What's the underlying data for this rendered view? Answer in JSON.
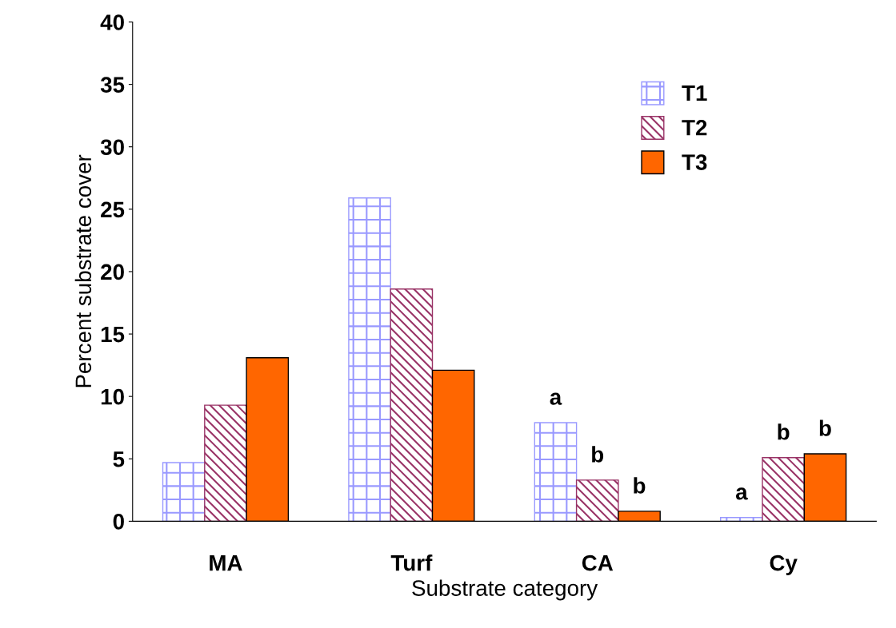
{
  "chart_data": {
    "type": "bar",
    "xlabel": "Substrate category",
    "ylabel": "Percent substrate cover",
    "categories": [
      "MA",
      "Turf",
      "CA",
      "Cy"
    ],
    "series": [
      {
        "name": "T1",
        "color": "#9999ff",
        "values": [
          4.7,
          25.9,
          7.9,
          0.3
        ],
        "value_labels": [
          null,
          null,
          "a",
          "a"
        ]
      },
      {
        "name": "T2",
        "color": "#993366",
        "values": [
          9.3,
          18.6,
          3.3,
          5.1
        ],
        "value_labels": [
          null,
          null,
          "b",
          "b"
        ]
      },
      {
        "name": "T3",
        "color": "#ff6600",
        "values": [
          13.1,
          12.1,
          0.8,
          5.4
        ],
        "value_labels": [
          null,
          null,
          "b",
          "b"
        ]
      }
    ],
    "ylim": [
      0,
      40
    ],
    "yticks": [
      0,
      5,
      10,
      15,
      20,
      25,
      30,
      35,
      40
    ],
    "grid": false,
    "legend": "top right"
  }
}
